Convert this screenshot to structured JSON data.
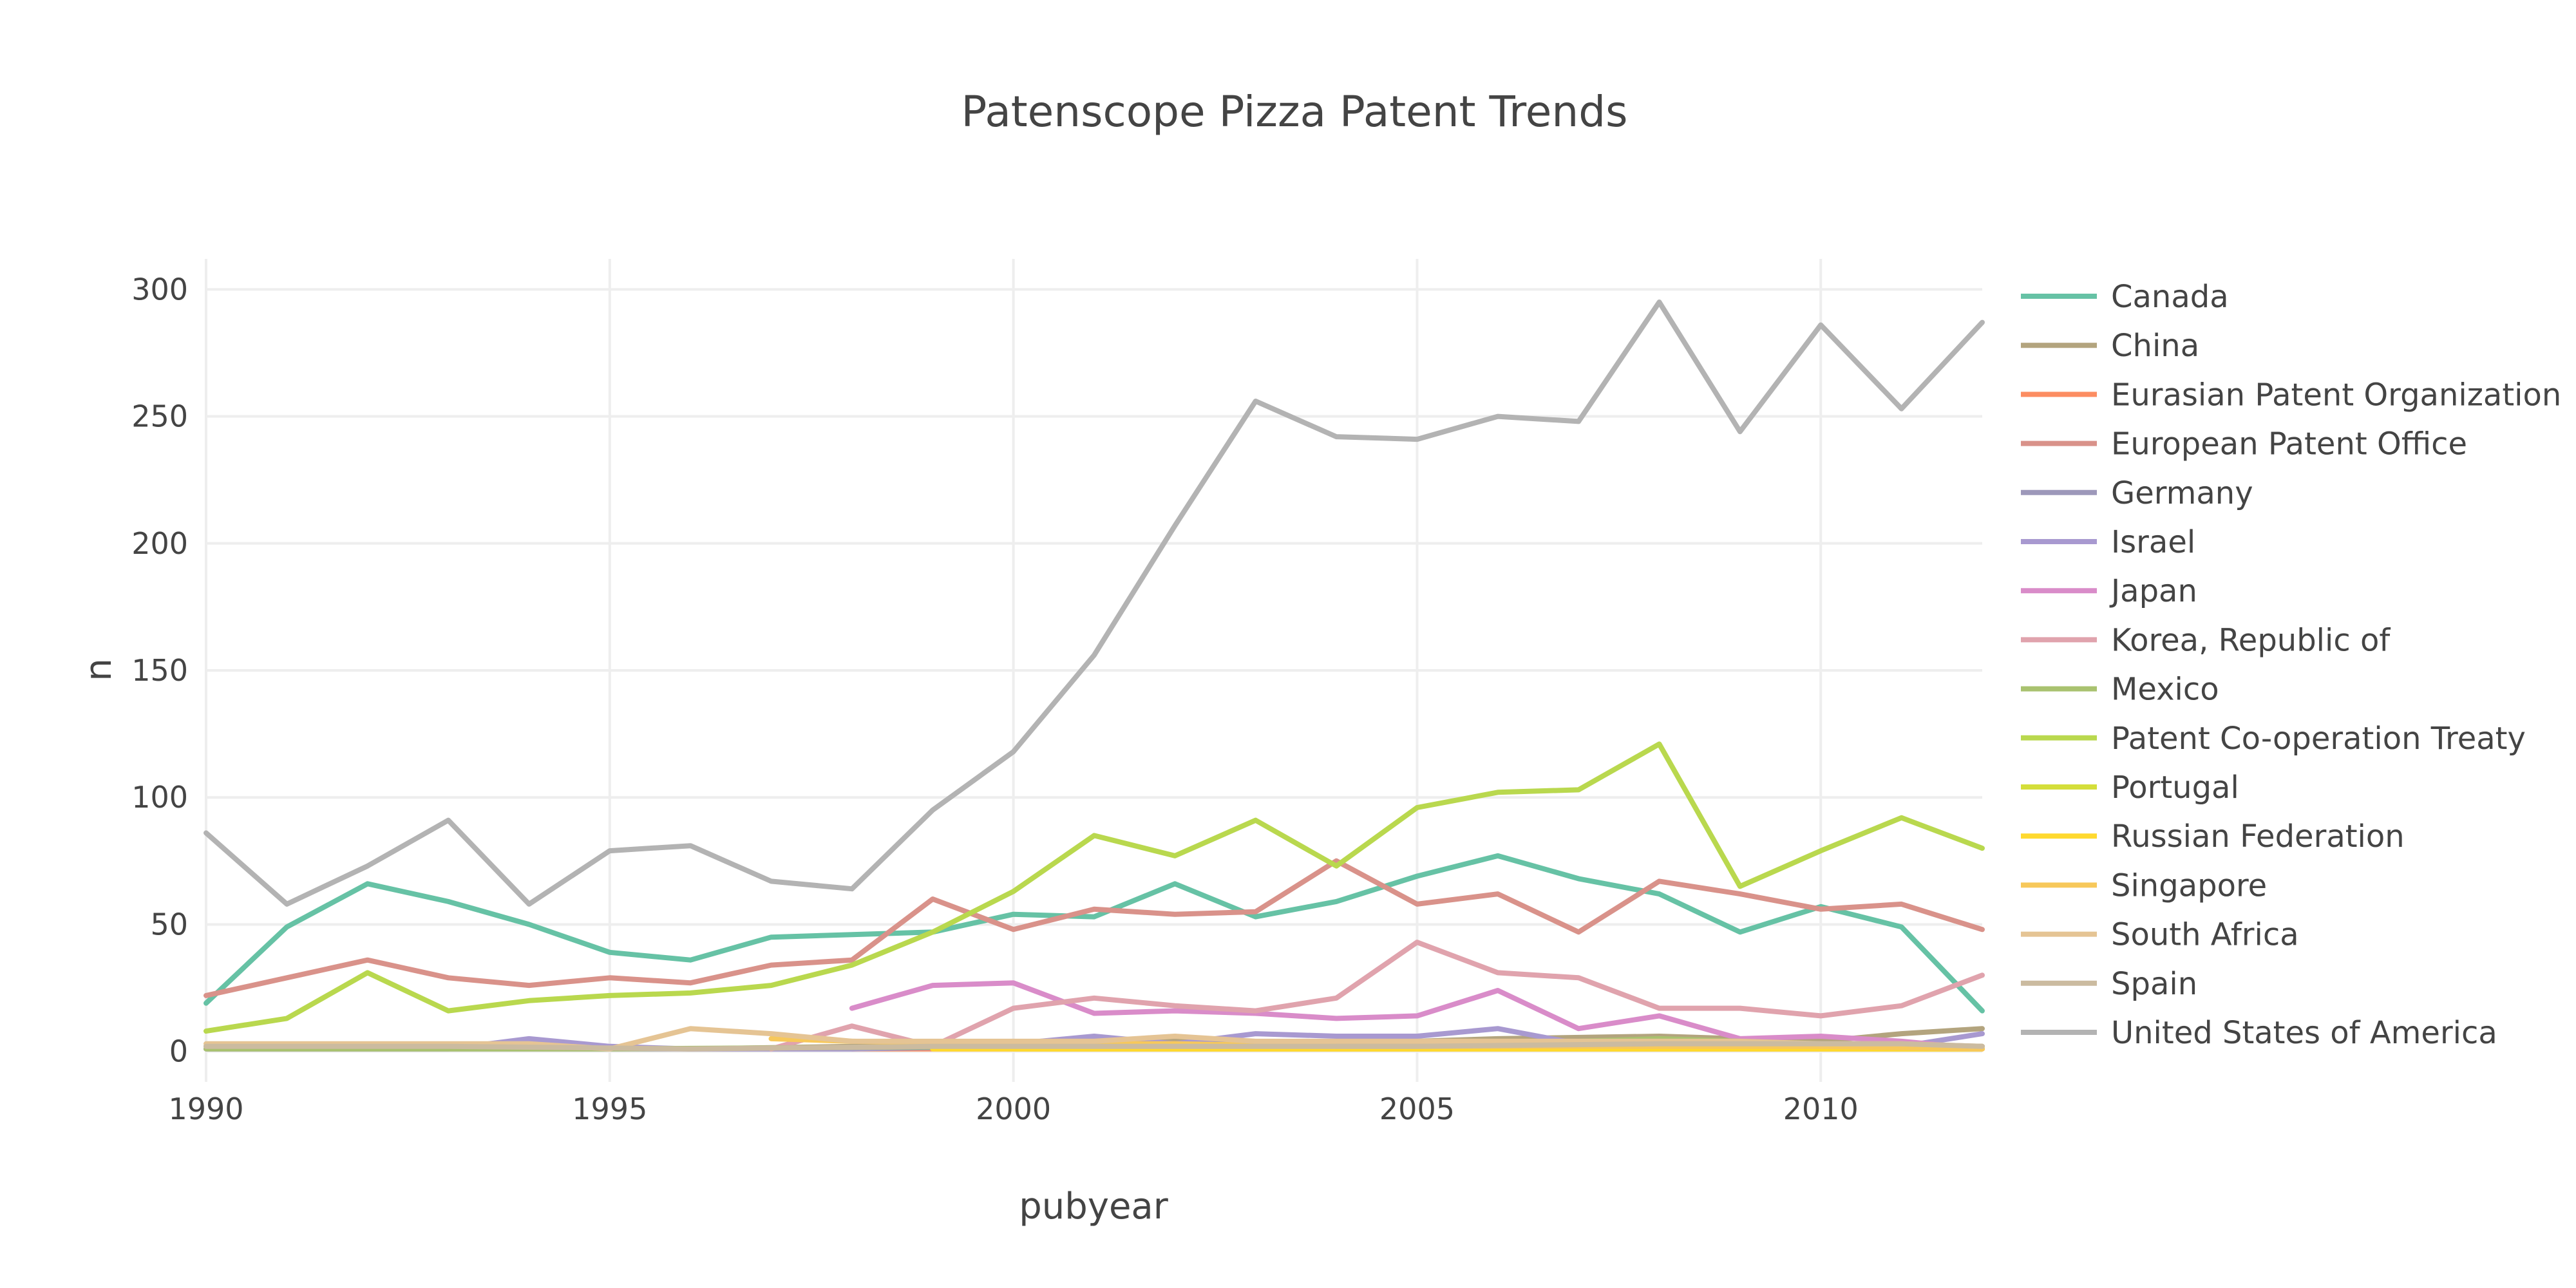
{
  "chart_data": {
    "type": "line",
    "title": "Patenscope Pizza Patent Trends",
    "xlabel": "pubyear",
    "ylabel": "n",
    "xlim": [
      1990,
      2012
    ],
    "ylim": [
      -12,
      312
    ],
    "x_ticks": [
      1990,
      1995,
      2000,
      2005,
      2010
    ],
    "y_ticks": [
      0,
      50,
      100,
      150,
      200,
      250,
      300
    ],
    "grid": true,
    "legend_position": "right",
    "series": [
      {
        "name": "Canada",
        "color": "#66c2a5",
        "x": [
          1990,
          1991,
          1992,
          1993,
          1994,
          1995,
          1996,
          1997,
          1998,
          1999,
          2000,
          2001,
          2002,
          2003,
          2004,
          2005,
          2006,
          2007,
          2008,
          2009,
          2010,
          2011,
          2012
        ],
        "y": [
          19,
          49,
          66,
          59,
          50,
          39,
          36,
          45,
          46,
          47,
          54,
          53,
          66,
          53,
          59,
          69,
          77,
          68,
          62,
          47,
          57,
          49,
          16
        ]
      },
      {
        "name": "China",
        "color": "#b3a47e",
        "x": [
          1990,
          1992,
          1994,
          1996,
          1998,
          2000,
          2002,
          2004,
          2006,
          2008,
          2010,
          2011,
          2012
        ],
        "y": [
          2,
          2,
          2,
          1,
          2,
          2,
          4,
          3,
          5,
          6,
          4,
          7,
          9
        ]
      },
      {
        "name": "Eurasian Patent Organization",
        "color": "#fc8d62",
        "x": [
          1998,
          2012
        ],
        "y": [
          1,
          1
        ]
      },
      {
        "name": "European Patent Office",
        "color": "#d9928a",
        "x": [
          1990,
          1991,
          1992,
          1993,
          1994,
          1995,
          1996,
          1997,
          1998,
          1999,
          2000,
          2001,
          2002,
          2003,
          2004,
          2005,
          2006,
          2007,
          2008,
          2009,
          2010,
          2011,
          2012
        ],
        "y": [
          22,
          29,
          36,
          29,
          26,
          29,
          27,
          34,
          36,
          60,
          48,
          56,
          54,
          55,
          75,
          58,
          62,
          47,
          67,
          62,
          56,
          58,
          48
        ]
      },
      {
        "name": "Germany",
        "color": "#9d98ba",
        "x": [
          1990,
          1994,
          1996,
          1998,
          2000,
          2002,
          2004,
          2006,
          2008,
          2010,
          2012
        ],
        "y": [
          1,
          1,
          1,
          1,
          2,
          3,
          3,
          3,
          3,
          3,
          2
        ]
      },
      {
        "name": "Israel",
        "color": "#a899d0",
        "x": [
          1990,
          1991,
          1992,
          1993,
          1994,
          1995,
          1996,
          1997,
          1998,
          1999,
          2000,
          2001,
          2002,
          2003,
          2004,
          2005,
          2006,
          2007,
          2008,
          2009,
          2010,
          2011,
          2012
        ],
        "y": [
          1,
          1,
          1,
          1,
          5,
          2,
          1,
          1,
          1,
          2,
          3,
          6,
          3,
          7,
          6,
          6,
          9,
          3,
          4,
          4,
          2,
          2,
          7
        ]
      },
      {
        "name": "Japan",
        "color": "#d98cc9",
        "x": [
          1998,
          1999,
          2000,
          2001,
          2002,
          2003,
          2004,
          2005,
          2006,
          2007,
          2008,
          2009,
          2010,
          2011,
          2012
        ],
        "y": [
          17,
          26,
          27,
          15,
          16,
          15,
          13,
          14,
          24,
          9,
          14,
          5,
          6,
          4,
          1
        ]
      },
      {
        "name": "Korea, Republic of",
        "color": "#e0a3ad",
        "x": [
          1997,
          1998,
          1999,
          2000,
          2001,
          2002,
          2003,
          2004,
          2005,
          2006,
          2007,
          2008,
          2009,
          2010,
          2011,
          2012
        ],
        "y": [
          1,
          10,
          2,
          17,
          21,
          18,
          16,
          21,
          43,
          31,
          29,
          17,
          17,
          14,
          18,
          30
        ]
      },
      {
        "name": "Mexico",
        "color": "#a9c26f",
        "x": [
          1990,
          1995,
          2000,
          2005,
          2008,
          2010,
          2012
        ],
        "y": [
          1,
          1,
          2,
          2,
          5,
          3,
          2
        ]
      },
      {
        "name": "Patent Co-operation Treaty",
        "color": "#b9d84e",
        "x": [
          1990,
          1991,
          1992,
          1993,
          1994,
          1995,
          1996,
          1997,
          1998,
          1999,
          2000,
          2001,
          2002,
          2003,
          2004,
          2005,
          2006,
          2007,
          2008,
          2009,
          2010,
          2011,
          2012
        ],
        "y": [
          8,
          13,
          31,
          16,
          20,
          22,
          23,
          26,
          34,
          47,
          63,
          85,
          77,
          91,
          73,
          96,
          102,
          103,
          121,
          65,
          79,
          92,
          80
        ]
      },
      {
        "name": "Portugal",
        "color": "#d4de3a",
        "x": [
          2000,
          2005,
          2008,
          2012
        ],
        "y": [
          1,
          1,
          1,
          1
        ]
      },
      {
        "name": "Russian Federation",
        "color": "#ffd92f",
        "x": [
          1999,
          2002,
          2005,
          2008,
          2012
        ],
        "y": [
          1,
          1,
          1,
          1,
          1
        ]
      },
      {
        "name": "Singapore",
        "color": "#f7c85a",
        "x": [
          1997,
          1998,
          2000,
          2002,
          2004,
          2006,
          2008,
          2010,
          2012
        ],
        "y": [
          5,
          4,
          3,
          3,
          2,
          2,
          2,
          2,
          1
        ]
      },
      {
        "name": "South Africa",
        "color": "#e5c494",
        "x": [
          1990,
          1991,
          1992,
          1993,
          1994,
          1995,
          1996,
          1997,
          1998,
          1999,
          2000,
          2001,
          2002,
          2003,
          2004,
          2005,
          2006,
          2007,
          2008,
          2009,
          2010,
          2011,
          2012
        ],
        "y": [
          3,
          3,
          3,
          3,
          3,
          1,
          9,
          7,
          4,
          4,
          4,
          4,
          6,
          4,
          4,
          4,
          4,
          4,
          4,
          4,
          3,
          3,
          2
        ]
      },
      {
        "name": "Spain",
        "color": "#cbbba0",
        "x": [
          1990,
          1993,
          1996,
          1999,
          2002,
          2005,
          2008,
          2011,
          2012
        ],
        "y": [
          2,
          2,
          1,
          2,
          2,
          2,
          3,
          3,
          2
        ]
      },
      {
        "name": "United States of America",
        "color": "#b3b3b3",
        "x": [
          1990,
          1991,
          1992,
          1993,
          1994,
          1995,
          1996,
          1997,
          1998,
          1999,
          2000,
          2001,
          2002,
          2003,
          2004,
          2005,
          2006,
          2007,
          2008,
          2009,
          2010,
          2011,
          2012
        ],
        "y": [
          86,
          58,
          73,
          91,
          58,
          79,
          81,
          67,
          64,
          95,
          118,
          156,
          207,
          256,
          242,
          241,
          250,
          248,
          295,
          244,
          286,
          253,
          287
        ]
      }
    ]
  }
}
